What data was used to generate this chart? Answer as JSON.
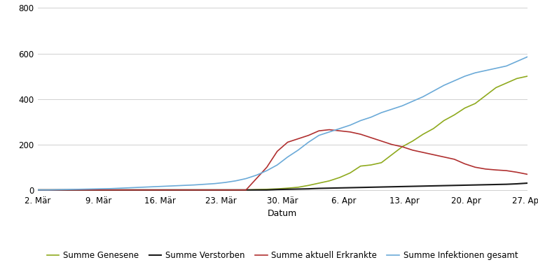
{
  "title": "",
  "xlabel": "Datum",
  "ylabel": "",
  "background_color": "#ffffff",
  "grid_color": "#d0d0d0",
  "ylim": [
    -10,
    800
  ],
  "yticks": [
    0,
    200,
    400,
    600,
    800
  ],
  "xtick_labels": [
    "2. Mär",
    "9. Mär",
    "16. Mär",
    "23. Mär",
    "30. Mär",
    "6. Apr",
    "13. Apr",
    "20. Apr",
    "27. Apr"
  ],
  "legend_labels": [
    "Summe Genesene",
    "Summe Verstorben",
    "Summe aktuell Erkrankte",
    "Summe Infektionen gesamt"
  ],
  "legend_colors": [
    "#8faa1e",
    "#1a1a1a",
    "#b03030",
    "#6baad8"
  ],
  "genesene": [
    0,
    0,
    0,
    0,
    0,
    0,
    0,
    0,
    0,
    0,
    0,
    0,
    0,
    0,
    0,
    0,
    0,
    0,
    0,
    0,
    0,
    2,
    3,
    5,
    8,
    12,
    20,
    30,
    40,
    55,
    75,
    105,
    110,
    120,
    155,
    190,
    215,
    245,
    270,
    305,
    330,
    360,
    380,
    415,
    450,
    470,
    490,
    500
  ],
  "verstorben": [
    0,
    0,
    0,
    0,
    0,
    0,
    0,
    0,
    0,
    0,
    0,
    0,
    0,
    0,
    0,
    0,
    0,
    0,
    0,
    0,
    0,
    0,
    0,
    2,
    3,
    4,
    5,
    7,
    8,
    9,
    10,
    11,
    12,
    13,
    14,
    15,
    16,
    17,
    18,
    19,
    20,
    21,
    22,
    23,
    24,
    25,
    27,
    30
  ],
  "erkrankte": [
    0,
    0,
    0,
    0,
    0,
    0,
    0,
    0,
    0,
    0,
    0,
    0,
    0,
    0,
    0,
    0,
    0,
    0,
    0,
    0,
    0,
    50,
    100,
    170,
    210,
    225,
    240,
    260,
    265,
    260,
    255,
    245,
    230,
    215,
    200,
    190,
    175,
    165,
    155,
    145,
    135,
    115,
    100,
    92,
    88,
    85,
    78,
    69
  ],
  "infektionen": [
    0,
    0,
    1,
    2,
    3,
    4,
    5,
    6,
    8,
    10,
    12,
    14,
    16,
    18,
    20,
    22,
    25,
    28,
    33,
    40,
    50,
    65,
    85,
    110,
    145,
    175,
    210,
    240,
    255,
    270,
    285,
    305,
    320,
    340,
    355,
    370,
    390,
    410,
    435,
    460,
    480,
    500,
    515,
    525,
    535,
    545,
    565,
    585
  ],
  "n_points": 48
}
